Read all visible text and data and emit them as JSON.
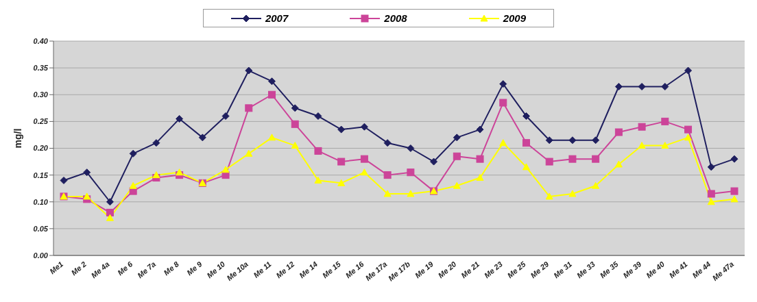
{
  "chart_data": {
    "type": "line",
    "ylabel": "mg/l",
    "categories": [
      "Me1",
      "Me 2",
      "Me 4a",
      "Me 6",
      "Me 7a",
      "Me 8",
      "Me 9",
      "Me 10",
      "Me 10a",
      "Me 11",
      "Me 12",
      "Me 14",
      "Me 15",
      "Me 16",
      "Me 17a",
      "Me 17b",
      "Me 19",
      "Me 20",
      "Me 21",
      "Me 23",
      "Me 25",
      "Me 29",
      "Me 31",
      "Me 33",
      "Me 35",
      "Me 39",
      "Me 40",
      "Me 41",
      "Me 44",
      "Me 47a"
    ],
    "series": [
      {
        "name": "2007",
        "color": "#1f1f5f",
        "marker": "diamond",
        "values": [
          0.14,
          0.155,
          0.1,
          0.19,
          0.21,
          0.255,
          0.22,
          0.26,
          0.345,
          0.325,
          0.275,
          0.26,
          0.235,
          0.24,
          0.21,
          0.2,
          0.175,
          0.22,
          0.235,
          0.32,
          0.26,
          0.215,
          0.215,
          0.215,
          0.315,
          0.315,
          0.315,
          0.345,
          0.165,
          0.18
        ]
      },
      {
        "name": "2008",
        "color": "#cc4499",
        "marker": "square",
        "values": [
          0.11,
          0.105,
          0.08,
          0.12,
          0.145,
          0.15,
          0.135,
          0.15,
          0.275,
          0.3,
          0.245,
          0.195,
          0.175,
          0.18,
          0.15,
          0.155,
          0.12,
          0.185,
          0.18,
          0.285,
          0.21,
          0.175,
          0.18,
          0.18,
          0.23,
          0.24,
          0.25,
          0.235,
          0.115,
          0.12
        ]
      },
      {
        "name": "2009",
        "color": "#ffff00",
        "marker": "triangle",
        "values": [
          0.11,
          0.11,
          0.07,
          0.13,
          0.15,
          0.155,
          0.135,
          0.16,
          0.19,
          0.22,
          0.205,
          0.14,
          0.135,
          0.155,
          0.115,
          0.115,
          0.12,
          0.13,
          0.145,
          0.21,
          0.165,
          0.11,
          0.115,
          0.13,
          0.17,
          0.205,
          0.205,
          0.22,
          0.1,
          0.105
        ]
      }
    ],
    "ylim": [
      0,
      0.4
    ],
    "yticks": [
      {
        "value": 0,
        "label": "0.00"
      },
      {
        "value": 0.05,
        "label": "0.05"
      },
      {
        "value": 0.1,
        "label": "0.10"
      },
      {
        "value": 0.15,
        "label": "0.15"
      },
      {
        "value": 0.2,
        "label": "0.20"
      },
      {
        "value": 0.25,
        "label": "0.25"
      },
      {
        "value": 0.3,
        "label": "0.30"
      },
      {
        "value": 0.35,
        "label": "0.35"
      },
      {
        "value": 0.4,
        "label": "0.40"
      }
    ],
    "grid": "y",
    "legend": "top",
    "line_style": "solid"
  }
}
